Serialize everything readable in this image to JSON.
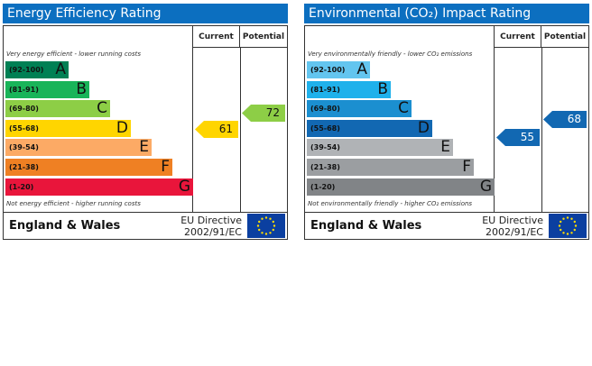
{
  "chart_data": [
    {
      "type": "bar",
      "title": "Energy Efficiency Rating",
      "columns": [
        "Current",
        "Potential"
      ],
      "top_note": "Very energy efficient - lower running costs",
      "bottom_note": "Not energy efficient - higher running costs",
      "bands": [
        {
          "range": "(92-100)",
          "letter": "A",
          "color": "#008054"
        },
        {
          "range": "(81-91)",
          "letter": "B",
          "color": "#19b459"
        },
        {
          "range": "(69-80)",
          "letter": "C",
          "color": "#8dce46"
        },
        {
          "range": "(55-68)",
          "letter": "D",
          "color": "#ffd500"
        },
        {
          "range": "(39-54)",
          "letter": "E",
          "color": "#fcaa65"
        },
        {
          "range": "(21-38)",
          "letter": "F",
          "color": "#ef8023"
        },
        {
          "range": "(1-20)",
          "letter": "G",
          "color": "#e9153b"
        }
      ],
      "current": {
        "value": 61,
        "color": "#ffd500"
      },
      "potential": {
        "value": 72,
        "color": "#8dce46"
      },
      "footer": {
        "region": "England & Wales",
        "directive_line1": "EU Directive",
        "directive_line2": "2002/91/EC"
      }
    },
    {
      "type": "bar",
      "title": "Environmental (CO₂) Impact Rating",
      "columns": [
        "Current",
        "Potential"
      ],
      "top_note": "Very environmentally friendly - lower CO₂ emissions",
      "bottom_note": "Not environmentally friendly - higher CO₂ emissions",
      "bands": [
        {
          "range": "(92-100)",
          "letter": "A",
          "color": "#63c5ef"
        },
        {
          "range": "(81-91)",
          "letter": "B",
          "color": "#1fb1eb"
        },
        {
          "range": "(69-80)",
          "letter": "C",
          "color": "#1b8fd0"
        },
        {
          "range": "(55-68)",
          "letter": "D",
          "color": "#1268b2"
        },
        {
          "range": "(39-54)",
          "letter": "E",
          "color": "#b0b3b6"
        },
        {
          "range": "(21-38)",
          "letter": "F",
          "color": "#9b9ea1"
        },
        {
          "range": "(1-20)",
          "letter": "G",
          "color": "#818487"
        }
      ],
      "current": {
        "value": 55,
        "color": "#1268b2"
      },
      "potential": {
        "value": 68,
        "color": "#1268b2"
      },
      "footer": {
        "region": "England & Wales",
        "directive_line1": "EU Directive",
        "directive_line2": "2002/91/EC"
      }
    }
  ]
}
